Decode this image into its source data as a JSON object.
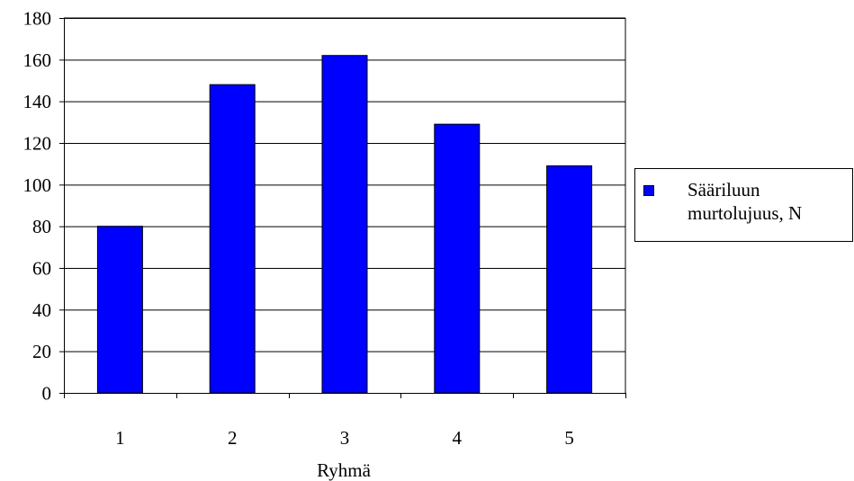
{
  "chart_data": {
    "type": "bar",
    "categories": [
      "1",
      "2",
      "3",
      "4",
      "5"
    ],
    "series": [
      {
        "name": "Sääriluun murtolujuus, N",
        "values": [
          80,
          148,
          162,
          129,
          109
        ]
      }
    ],
    "xlabel": "Ryhmä",
    "ylabel": "",
    "ylim": [
      0,
      180
    ],
    "yticks": [
      "0",
      "20",
      "40",
      "60",
      "80",
      "100",
      "120",
      "140",
      "160",
      "180"
    ],
    "grid": true,
    "legend": "right",
    "colors": {
      "bar": "#0000ff",
      "bar_edge": "#000000",
      "grid": "#000000"
    }
  }
}
